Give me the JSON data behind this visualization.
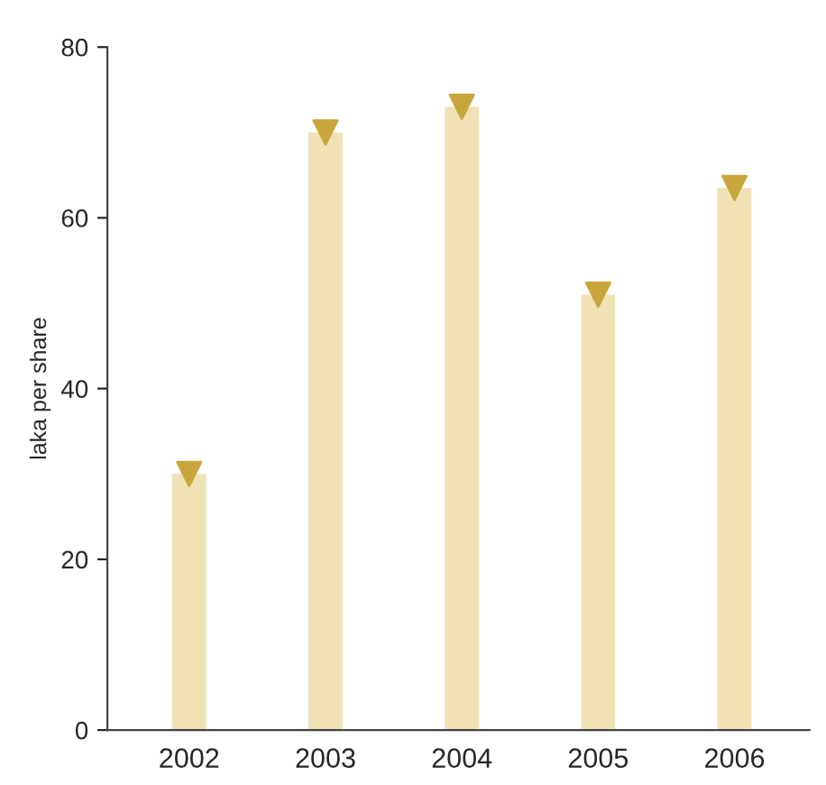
{
  "chart_data": {
    "type": "bar",
    "ylabel": "laka per share",
    "categories": [
      "2002",
      "2003",
      "2004",
      "2005",
      "2006"
    ],
    "series": [
      {
        "color": "#f0e2b4",
        "values": [
          30,
          70,
          73,
          51,
          63.5
        ]
      },
      {
        "type": "scatter",
        "color": "#c9a63c",
        "values": [
          30,
          70,
          73,
          51,
          63.5
        ]
      }
    ],
    "marker": "triangle",
    "ylim": [
      0,
      80
    ],
    "yticks": [
      0,
      20,
      40,
      60,
      80
    ],
    "grid": false
  }
}
